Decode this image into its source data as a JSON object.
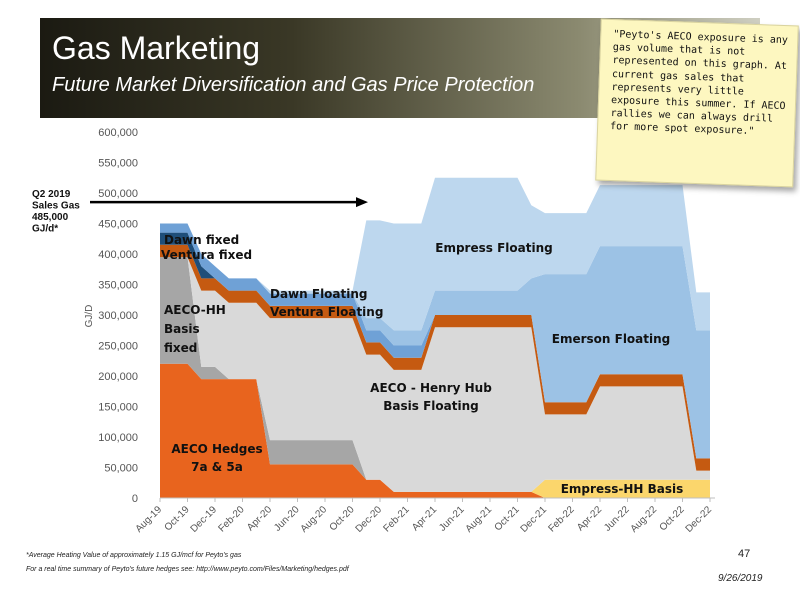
{
  "slide": {
    "title": "Gas Marketing",
    "subtitle": "Future Market Diversification and Gas Price Protection",
    "note": "\"Peyto's AECO exposure is any gas volume that is not represented on this graph. At current gas sales that represents very little exposure this summer. If AECO rallies we can always drill for more spot exposure.\"",
    "footnote_1": "*Average Heating Value of approximately 1.15 GJ/mcf for Peyto's gas",
    "footnote_2": "For a real time summary of Peyto's future hedges see: http://www.peyto.com/Files/Marketing/hedges.pdf",
    "page_number": "47",
    "date": "9/26/2019"
  },
  "chart_data": {
    "type": "area",
    "stacked": true,
    "ylabel": "GJ/D",
    "xlabel": "",
    "ylim": [
      0,
      600000
    ],
    "y_ticks": [
      "0",
      "50,000",
      "100,000",
      "150,000",
      "200,000",
      "250,000",
      "300,000",
      "350,000",
      "400,000",
      "450,000",
      "500,000",
      "550,000",
      "600,000"
    ],
    "x_ticks": [
      "Aug-19",
      "Oct-19",
      "Dec-19",
      "Feb-20",
      "Apr-20",
      "Jun-20",
      "Aug-20",
      "Oct-20",
      "Dec-20",
      "Feb-21",
      "Apr-21",
      "Jun-21",
      "Aug-21",
      "Oct-21",
      "Dec-21",
      "Feb-22",
      "Apr-22",
      "Jun-22",
      "Aug-22",
      "Oct-22",
      "Dec-22"
    ],
    "grid": false,
    "months": [
      "Aug-19",
      "Sep-19",
      "Oct-19",
      "Nov-19",
      "Dec-19",
      "Jan-20",
      "Feb-20",
      "Mar-20",
      "Apr-20",
      "May-20",
      "Jun-20",
      "Jul-20",
      "Aug-20",
      "Sep-20",
      "Oct-20",
      "Nov-20",
      "Dec-20",
      "Jan-21",
      "Feb-21",
      "Mar-21",
      "Apr-21",
      "May-21",
      "Jun-21",
      "Jul-21",
      "Aug-21",
      "Sep-21",
      "Oct-21",
      "Nov-21",
      "Dec-21",
      "Jan-22",
      "Feb-22",
      "Mar-22",
      "Apr-22",
      "May-22",
      "Jun-22",
      "Jul-22",
      "Aug-22",
      "Sep-22",
      "Oct-22",
      "Nov-22",
      "Dec-22"
    ],
    "series": [
      {
        "name": "AECO Hedges 7a & 5a",
        "color": "#e8641e",
        "values": [
          220000,
          220000,
          220000,
          195000,
          195000,
          195000,
          195000,
          195000,
          55000,
          55000,
          55000,
          55000,
          55000,
          55000,
          55000,
          30000,
          30000,
          10000,
          10000,
          10000,
          10000,
          10000,
          10000,
          10000,
          10000,
          10000,
          10000,
          10000,
          0,
          0,
          0,
          0,
          0,
          0,
          0,
          0,
          0,
          0,
          0,
          0,
          0
        ]
      },
      {
        "name": "Empress-HH Basis",
        "color": "#fbd66c",
        "values": [
          0,
          0,
          0,
          0,
          0,
          0,
          0,
          0,
          0,
          0,
          0,
          0,
          0,
          0,
          0,
          0,
          0,
          0,
          0,
          0,
          0,
          0,
          0,
          0,
          0,
          0,
          0,
          0,
          30000,
          30000,
          30000,
          30000,
          30000,
          30000,
          30000,
          30000,
          30000,
          30000,
          30000,
          30000,
          30000
        ]
      },
      {
        "name": "AECO-HH Basis fixed",
        "color": "#a6a6a6",
        "values": [
          175000,
          175000,
          175000,
          20000,
          20000,
          0,
          0,
          0,
          40000,
          40000,
          40000,
          40000,
          40000,
          40000,
          40000,
          0,
          0,
          0,
          0,
          0,
          0,
          0,
          0,
          0,
          0,
          0,
          0,
          0,
          0,
          0,
          0,
          0,
          0,
          0,
          0,
          0,
          0,
          0,
          0,
          0,
          0
        ]
      },
      {
        "name": "AECO - Henry Hub Basis Floating",
        "color": "#d9d9d9",
        "values": [
          0,
          0,
          0,
          125000,
          125000,
          125000,
          125000,
          125000,
          200000,
          200000,
          200000,
          200000,
          200000,
          200000,
          200000,
          205000,
          205000,
          200000,
          200000,
          200000,
          270000,
          270000,
          270000,
          270000,
          270000,
          270000,
          270000,
          270000,
          107000,
          107000,
          107000,
          107000,
          153000,
          153000,
          153000,
          153000,
          153000,
          153000,
          153000,
          15000,
          15000
        ]
      },
      {
        "name": "Ventura fixed",
        "color": "#c55a11",
        "values": [
          20000,
          20000,
          20000,
          20000,
          20000,
          20000,
          20000,
          20000,
          20000,
          20000,
          20000,
          20000,
          20000,
          20000,
          20000,
          20000,
          20000,
          20000,
          20000,
          20000,
          20000,
          20000,
          20000,
          20000,
          20000,
          20000,
          20000,
          20000,
          20000,
          20000,
          20000,
          20000,
          20000,
          20000,
          20000,
          20000,
          20000,
          20000,
          20000,
          20000,
          20000
        ]
      },
      {
        "name": "Dawn fixed",
        "color": "#1f4e79",
        "values": [
          20000,
          20000,
          20000,
          20000,
          0,
          0,
          0,
          0,
          0,
          0,
          0,
          0,
          0,
          0,
          0,
          0,
          0,
          0,
          0,
          0,
          0,
          0,
          0,
          0,
          0,
          0,
          0,
          0,
          0,
          0,
          0,
          0,
          0,
          0,
          0,
          0,
          0,
          0,
          0,
          0,
          0
        ]
      },
      {
        "name": "Dawn Floating / Ventura Floating",
        "color": "#6fa1d6",
        "values": [
          15000,
          15000,
          15000,
          20000,
          20000,
          20000,
          20000,
          20000,
          20000,
          20000,
          20000,
          20000,
          20000,
          20000,
          20000,
          20000,
          20000,
          20000,
          20000,
          20000,
          0,
          0,
          0,
          0,
          0,
          0,
          0,
          0,
          0,
          0,
          0,
          0,
          0,
          0,
          0,
          0,
          0,
          0,
          0,
          0,
          0
        ]
      },
      {
        "name": "Emerson Floating",
        "color": "#9cc2e5",
        "values": [
          0,
          0,
          0,
          0,
          0,
          0,
          0,
          0,
          0,
          0,
          0,
          0,
          0,
          0,
          0,
          20000,
          20000,
          25000,
          25000,
          25000,
          40000,
          40000,
          40000,
          40000,
          40000,
          40000,
          40000,
          60000,
          210000,
          210000,
          210000,
          210000,
          210000,
          210000,
          210000,
          210000,
          210000,
          210000,
          210000,
          210000,
          210000
        ]
      },
      {
        "name": "Empress Floating",
        "color": "#bdd7ee",
        "values": [
          0,
          0,
          0,
          0,
          0,
          0,
          0,
          0,
          5000,
          5000,
          5000,
          5000,
          5000,
          5000,
          5000,
          160000,
          160000,
          175000,
          175000,
          175000,
          185000,
          185000,
          185000,
          185000,
          185000,
          185000,
          185000,
          120000,
          100000,
          100000,
          100000,
          100000,
          100000,
          100000,
          100000,
          100000,
          100000,
          100000,
          100000,
          62000,
          62000
        ]
      }
    ],
    "labels": {
      "aeco_hedges": [
        "AECO Hedges",
        "7a & 5a"
      ],
      "aeco_hh_fixed": [
        "AECO-HH",
        "Basis",
        "fixed"
      ],
      "dawn_fixed": "Dawn fixed",
      "ventura_fixed": "Ventura fixed",
      "dawn_floating": "Dawn Floating",
      "ventura_floating": "Ventura Floating",
      "empress_floating": "Empress Floating",
      "emerson_floating": "Emerson Floating",
      "aeco_hh_floating": [
        "AECO - Henry Hub",
        "Basis Floating"
      ],
      "empress_hh_basis": "Empress-HH Basis"
    },
    "annotation": {
      "text": [
        "Q2 2019",
        "Sales Gas",
        "485,000",
        "GJ/d*"
      ],
      "value": 485000
    }
  }
}
